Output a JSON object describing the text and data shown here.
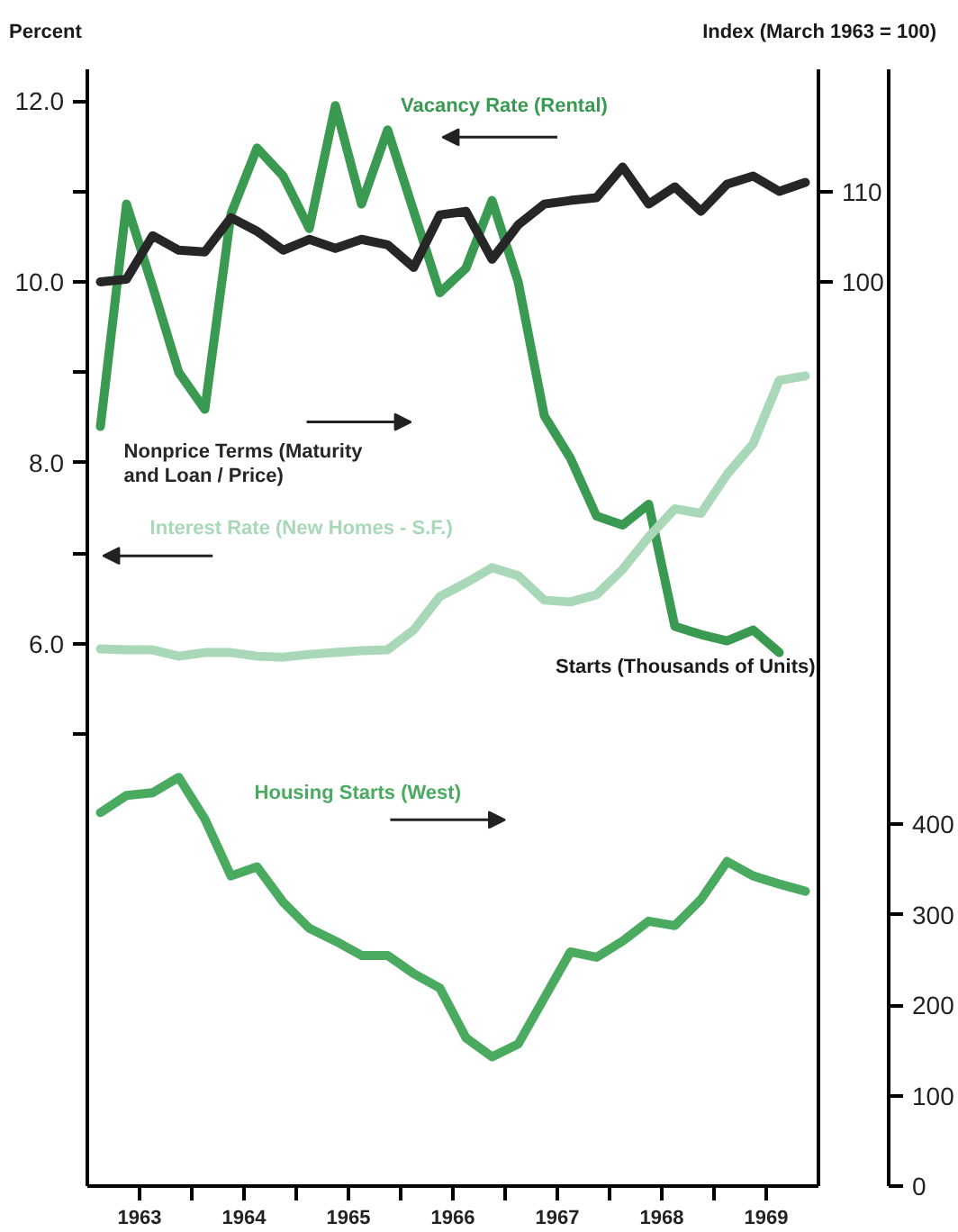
{
  "chart_data": {
    "type": "line",
    "ylabel": "Percent",
    "y2label": "Index (March 1963 = 100)",
    "y3label": "Starts (Thousands of Units)",
    "x": [
      1963.125,
      1963.375,
      1963.625,
      1963.875,
      1964.125,
      1964.375,
      1964.625,
      1964.875,
      1965.125,
      1965.375,
      1965.625,
      1965.875,
      1966.125,
      1966.375,
      1966.625,
      1966.875,
      1967.125,
      1967.375,
      1967.625,
      1967.875,
      1968.125,
      1968.375,
      1968.625,
      1968.875,
      1969.125,
      1969.375,
      1969.625,
      1969.875
    ],
    "xlim": [
      1963,
      1970
    ],
    "xticks": [
      {
        "value": 1963.5,
        "label": "1963"
      },
      {
        "value": 1964,
        "label": null
      },
      {
        "value": 1964.5,
        "label": "1964"
      },
      {
        "value": 1965,
        "label": null
      },
      {
        "value": 1965.5,
        "label": "1965"
      },
      {
        "value": 1966,
        "label": null
      },
      {
        "value": 1966.5,
        "label": "1966"
      },
      {
        "value": 1967,
        "label": null
      },
      {
        "value": 1967.5,
        "label": "1967"
      },
      {
        "value": 1968,
        "label": null
      },
      {
        "value": 1968.5,
        "label": "1968"
      },
      {
        "value": 1969,
        "label": null
      },
      {
        "value": 1969.5,
        "label": "1969"
      }
    ],
    "ylim": [
      0,
      12.35
    ],
    "yticks": [
      {
        "value": 5,
        "label": null
      },
      {
        "value": 6,
        "label": "6.0"
      },
      {
        "value": 7,
        "label": null
      },
      {
        "value": 8,
        "label": "8.0"
      },
      {
        "value": 9,
        "label": null
      },
      {
        "value": 10,
        "label": "10.0"
      },
      {
        "value": 11,
        "label": null
      },
      {
        "value": 12,
        "label": "12.0"
      }
    ],
    "y2lim": [
      0,
      123.5
    ],
    "y2ticks": [
      100,
      110
    ],
    "y3lim": [
      0,
      1235
    ],
    "y3ticks": [
      0,
      100,
      200,
      300,
      400
    ],
    "grid": false,
    "line_style": "solid",
    "marker": "none",
    "series": [
      {
        "name": "Vacancy Rate (Rental)",
        "color": "#3a9a52",
        "values": [
          8.4,
          10.86,
          9.95,
          9.0,
          8.59,
          10.75,
          11.48,
          11.17,
          10.59,
          11.95,
          10.86,
          11.68,
          10.78,
          9.88,
          10.15,
          10.9,
          10.0,
          8.52,
          8.05,
          7.41,
          7.31,
          7.54,
          6.19,
          6.1,
          6.03,
          6.15,
          5.9,
          null
        ]
      },
      {
        "name": "Nonprice Terms (Maturity\nand Loan / Price)",
        "color": "#262626",
        "axis": "y2",
        "values": [
          100.0,
          100.3,
          105.1,
          103.5,
          103.3,
          107.1,
          105.6,
          103.5,
          104.7,
          103.7,
          104.7,
          104.1,
          101.6,
          107.4,
          107.8,
          102.5,
          106.3,
          108.6,
          109.0,
          109.3,
          112.7,
          108.6,
          110.5,
          107.8,
          110.8,
          111.7,
          110.0,
          111.0
        ]
      },
      {
        "name": "Interest Rate (New Homes - S.F.)",
        "color": "#a8d8b8",
        "values": [
          5.94,
          5.93,
          5.93,
          5.86,
          5.9,
          5.9,
          5.86,
          5.85,
          5.88,
          5.9,
          5.92,
          5.93,
          6.15,
          6.52,
          6.67,
          6.84,
          6.75,
          6.48,
          6.46,
          6.54,
          6.82,
          7.18,
          7.49,
          7.44,
          7.87,
          8.21,
          8.91,
          8.96
        ]
      },
      {
        "name": "Housing Starts (West)",
        "color": "#4aaa60",
        "axis": "y3",
        "values": [
          413,
          432,
          435,
          452,
          406,
          343,
          353,
          314,
          285,
          271,
          255,
          255,
          235,
          219,
          164,
          143,
          157,
          208,
          259,
          253,
          271,
          293,
          288,
          317,
          359,
          343,
          334,
          326
        ]
      }
    ]
  }
}
